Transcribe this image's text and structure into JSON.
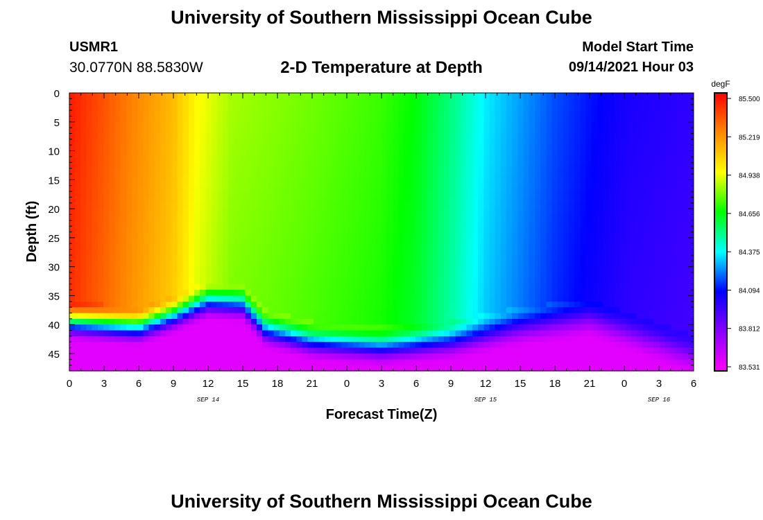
{
  "header": {
    "title": "University of Southern Mississippi Ocean Cube",
    "station": "USMR1",
    "coords": "30.0770N  88.5830W",
    "plot_title": "2-D Temperature at Depth",
    "start_label": "Model Start Time",
    "start_value": "09/14/2021 Hour 03"
  },
  "footer": {
    "title": "University of Southern Mississippi Ocean Cube"
  },
  "colors": {
    "background": "#ffffff",
    "axis": "#000000"
  },
  "chart_data": {
    "type": "heatmap",
    "xlabel": "Forecast Time(Z)",
    "ylabel": "Depth (ft)",
    "x_tick_labels": [
      "0",
      "3",
      "6",
      "9",
      "12",
      "15",
      "18",
      "21",
      "0",
      "3",
      "6",
      "9",
      "12",
      "15",
      "18",
      "21",
      "0",
      "3",
      "6"
    ],
    "x_range_hours": [
      0,
      54
    ],
    "x_tick_step_hours": 3,
    "date_labels": [
      {
        "label": "SEP 14",
        "hour": 12
      },
      {
        "label": "SEP 15",
        "hour": 36
      },
      {
        "label": "SEP 16",
        "hour": 51
      }
    ],
    "y_tick_labels": [
      "0",
      "5",
      "10",
      "15",
      "20",
      "25",
      "30",
      "35",
      "40",
      "45"
    ],
    "y_range": [
      0,
      48
    ],
    "y_tick_step": 5,
    "colorbar": {
      "unit": "degF",
      "labels": [
        "85.500",
        "85.219",
        "84.938",
        "84.656",
        "84.375",
        "84.094",
        "83.812",
        "83.531"
      ],
      "min": 83.531,
      "max": 85.5,
      "stops": [
        "#ff00ff",
        "#8a00ff",
        "#0000ff",
        "#00ffff",
        "#00ff00",
        "#ffff00",
        "#ff8800",
        "#ff0000"
      ]
    },
    "surface_temperature": [
      {
        "hour": 0,
        "temp": 85.45
      },
      {
        "hour": 5,
        "temp": 85.25
      },
      {
        "hour": 9,
        "temp": 85.1
      },
      {
        "hour": 11,
        "temp": 84.95
      },
      {
        "hour": 14,
        "temp": 84.84
      },
      {
        "hour": 21,
        "temp": 84.78
      },
      {
        "hour": 27,
        "temp": 84.72
      },
      {
        "hour": 30,
        "temp": 84.65
      },
      {
        "hour": 33,
        "temp": 84.52
      },
      {
        "hour": 36,
        "temp": 84.36
      },
      {
        "hour": 42,
        "temp": 84.18
      },
      {
        "hour": 48,
        "temp": 84.05
      },
      {
        "hour": 54,
        "temp": 84.0
      }
    ],
    "bottom_layer_top_depth": [
      {
        "hour": 0,
        "depth": 42
      },
      {
        "hour": 6,
        "depth": 43
      },
      {
        "hour": 9,
        "depth": 41
      },
      {
        "hour": 12,
        "depth": 38.5
      },
      {
        "hour": 15,
        "depth": 39
      },
      {
        "hour": 17,
        "depth": 43.5
      },
      {
        "hour": 21,
        "depth": 45.5
      },
      {
        "hour": 27,
        "depth": 46.5
      },
      {
        "hour": 33,
        "depth": 45.5
      },
      {
        "hour": 39,
        "depth": 43
      },
      {
        "hour": 45,
        "depth": 41.5
      },
      {
        "hour": 54,
        "depth": 48
      }
    ],
    "bottom_temperature": 83.6
  }
}
